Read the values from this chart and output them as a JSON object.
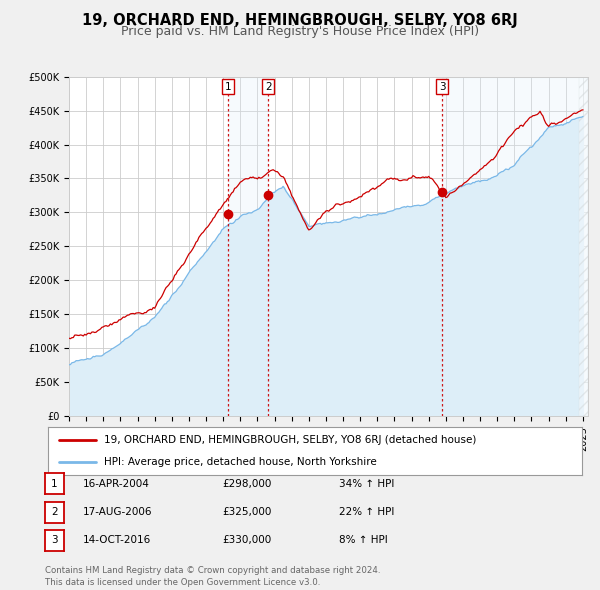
{
  "title": "19, ORCHARD END, HEMINGBROUGH, SELBY, YO8 6RJ",
  "subtitle": "Price paid vs. HM Land Registry's House Price Index (HPI)",
  "ylim": [
    0,
    500000
  ],
  "yticks": [
    0,
    50000,
    100000,
    150000,
    200000,
    250000,
    300000,
    350000,
    400000,
    450000,
    500000
  ],
  "ytick_labels": [
    "£0",
    "£50K",
    "£100K",
    "£150K",
    "£200K",
    "£250K",
    "£300K",
    "£350K",
    "£400K",
    "£450K",
    "£500K"
  ],
  "xlim_start": 1995.0,
  "xlim_end": 2025.3,
  "xticks": [
    1995,
    1996,
    1997,
    1998,
    1999,
    2000,
    2001,
    2002,
    2003,
    2004,
    2005,
    2006,
    2007,
    2008,
    2009,
    2010,
    2011,
    2012,
    2013,
    2014,
    2015,
    2016,
    2017,
    2018,
    2019,
    2020,
    2021,
    2022,
    2023,
    2024,
    2025
  ],
  "background_color": "#f0f0f0",
  "plot_bg_color": "#ffffff",
  "grid_color": "#cccccc",
  "red_line_color": "#cc0000",
  "blue_line_color": "#7ab8e8",
  "blue_fill_color": "#ddeef8",
  "vline_color": "#cc0000",
  "legend_label_red": "19, ORCHARD END, HEMINGBROUGH, SELBY, YO8 6RJ (detached house)",
  "legend_label_blue": "HPI: Average price, detached house, North Yorkshire",
  "transactions": [
    {
      "num": 1,
      "date_label": "16-APR-2004",
      "year": 2004.29,
      "price": 298000,
      "pct": "34%",
      "dir": "↑"
    },
    {
      "num": 2,
      "date_label": "17-AUG-2006",
      "year": 2006.63,
      "price": 325000,
      "pct": "22%",
      "dir": "↑"
    },
    {
      "num": 3,
      "date_label": "14-OCT-2016",
      "year": 2016.79,
      "price": 330000,
      "pct": "8%",
      "dir": "↑"
    }
  ],
  "footer": "Contains HM Land Registry data © Crown copyright and database right 2024.\nThis data is licensed under the Open Government Licence v3.0.",
  "title_fontsize": 10.5,
  "subtitle_fontsize": 9,
  "tick_fontsize": 7,
  "legend_fontsize": 7.5,
  "table_fontsize": 7.5
}
